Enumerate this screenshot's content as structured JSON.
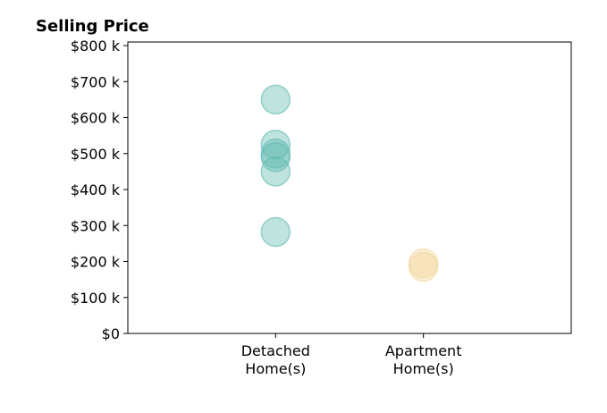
{
  "chart_data": {
    "type": "scatter",
    "title": "Selling Price",
    "xlabel": "",
    "ylabel": "",
    "categories": [
      [
        "Detached",
        "Home(s)"
      ],
      [
        "Apartment",
        "Home(s)"
      ]
    ],
    "y_ticks": [
      {
        "value": 0,
        "label": "$0"
      },
      {
        "value": 100000,
        "label": "$100 k"
      },
      {
        "value": 200000,
        "label": "$200 k"
      },
      {
        "value": 300000,
        "label": "$300 k"
      },
      {
        "value": 400000,
        "label": "$400 k"
      },
      {
        "value": 500000,
        "label": "$500 k"
      },
      {
        "value": 600000,
        "label": "$600 k"
      },
      {
        "value": 700000,
        "label": "$700 k"
      },
      {
        "value": 800000,
        "label": "$800 k"
      }
    ],
    "ylim": [
      0,
      810000
    ],
    "x_range": [
      -1,
      2
    ],
    "grid": false,
    "series": [
      {
        "category_index": 0,
        "color": "#5fb9b0",
        "values": [
          650000,
          525000,
          500000,
          490000,
          450000,
          282000
        ]
      },
      {
        "category_index": 1,
        "color": "#f2d499",
        "values": [
          195000,
          185000
        ]
      }
    ]
  }
}
